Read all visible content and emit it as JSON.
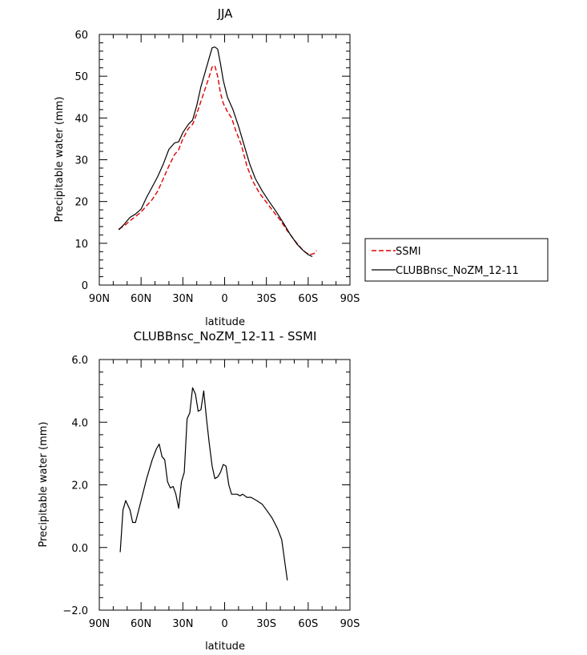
{
  "chart_data": [
    {
      "type": "line",
      "title": "JJA",
      "xlabel": "latitude",
      "ylabel": "Precipitable water (mm)",
      "xlim": [
        90,
        -90
      ],
      "ylim": [
        0,
        60
      ],
      "xticks": [
        {
          "value": 90,
          "label": "90N"
        },
        {
          "value": 60,
          "label": "60N"
        },
        {
          "value": 30,
          "label": "30N"
        },
        {
          "value": 0,
          "label": "0"
        },
        {
          "value": -30,
          "label": "30S"
        },
        {
          "value": -60,
          "label": "60S"
        },
        {
          "value": -90,
          "label": "90S"
        }
      ],
      "yticks": [
        {
          "value": 0,
          "label": "0"
        },
        {
          "value": 10,
          "label": "10"
        },
        {
          "value": 20,
          "label": "20"
        },
        {
          "value": 30,
          "label": "30"
        },
        {
          "value": 40,
          "label": "40"
        },
        {
          "value": 50,
          "label": "50"
        },
        {
          "value": 60,
          "label": "60"
        }
      ],
      "legend_position": "right",
      "series": [
        {
          "name": "SSMI",
          "color": "#e00000",
          "dash": "dashed",
          "points": [
            [
              76,
              13.4
            ],
            [
              72,
              14.2
            ],
            [
              68,
              15.4
            ],
            [
              64,
              16.4
            ],
            [
              60,
              17.5
            ],
            [
              56,
              19.0
            ],
            [
              52,
              20.5
            ],
            [
              48,
              22.5
            ],
            [
              44,
              25.5
            ],
            [
              40,
              28.5
            ],
            [
              36,
              31.2
            ],
            [
              33,
              32.4
            ],
            [
              30,
              35.0
            ],
            [
              26,
              37.5
            ],
            [
              23,
              38.5
            ],
            [
              20,
              41.0
            ],
            [
              17,
              44.0
            ],
            [
              14,
              47.0
            ],
            [
              11,
              50.0
            ],
            [
              9,
              52.2
            ],
            [
              7,
              52.5
            ],
            [
              5,
              50.0
            ],
            [
              3,
              46.0
            ],
            [
              1,
              43.5
            ],
            [
              -2,
              41.5
            ],
            [
              -5,
              40.0
            ],
            [
              -8,
              37.0
            ],
            [
              -12,
              33.5
            ],
            [
              -16,
              28.5
            ],
            [
              -20,
              25.0
            ],
            [
              -25,
              22.0
            ],
            [
              -30,
              19.8
            ],
            [
              -35,
              17.6
            ],
            [
              -40,
              15.5
            ],
            [
              -45,
              13.0
            ],
            [
              -50,
              10.8
            ],
            [
              -55,
              8.8
            ],
            [
              -58,
              7.8
            ],
            [
              -61,
              7.3
            ],
            [
              -64,
              7.5
            ],
            [
              -66,
              8.3
            ]
          ]
        },
        {
          "name": "CLUBBnsc_NoZM_12-11",
          "color": "#000000",
          "dash": "solid",
          "points": [
            [
              76,
              13.2
            ],
            [
              72,
              14.6
            ],
            [
              68,
              16.2
            ],
            [
              64,
              17.0
            ],
            [
              60,
              18.2
            ],
            [
              56,
              21.0
            ],
            [
              52,
              23.5
            ],
            [
              48,
              26.0
            ],
            [
              44,
              29.0
            ],
            [
              40,
              32.5
            ],
            [
              36,
              34.0
            ],
            [
              33,
              34.3
            ],
            [
              30,
              36.5
            ],
            [
              26,
              38.5
            ],
            [
              23,
              39.5
            ],
            [
              20,
              43.0
            ],
            [
              17,
              47.5
            ],
            [
              14,
              51.0
            ],
            [
              11,
              54.5
            ],
            [
              9,
              56.8
            ],
            [
              7,
              57.0
            ],
            [
              5,
              56.5
            ],
            [
              3,
              53.0
            ],
            [
              1,
              49.0
            ],
            [
              -2,
              45.0
            ],
            [
              -6,
              42.0
            ],
            [
              -10,
              38.0
            ],
            [
              -14,
              33.5
            ],
            [
              -18,
              29.0
            ],
            [
              -22,
              25.5
            ],
            [
              -27,
              22.5
            ],
            [
              -32,
              20.0
            ],
            [
              -37,
              17.6
            ],
            [
              -42,
              15.0
            ],
            [
              -47,
              12.2
            ],
            [
              -52,
              9.8
            ],
            [
              -56,
              8.4
            ],
            [
              -60,
              7.3
            ],
            [
              -63,
              6.8
            ]
          ]
        }
      ]
    },
    {
      "type": "line",
      "title": "CLUBBnsc_NoZM_12-11 - SSMI",
      "xlabel": "latitude",
      "ylabel": "Precipitable water (mm)",
      "xlim": [
        90,
        -90
      ],
      "ylim": [
        -2,
        6
      ],
      "xticks": [
        {
          "value": 90,
          "label": "90N"
        },
        {
          "value": 60,
          "label": "60N"
        },
        {
          "value": 30,
          "label": "30N"
        },
        {
          "value": 0,
          "label": "0"
        },
        {
          "value": -30,
          "label": "30S"
        },
        {
          "value": -60,
          "label": "60S"
        },
        {
          "value": -90,
          "label": "90S"
        }
      ],
      "yticks": [
        {
          "value": -2,
          "label": "−2.0"
        },
        {
          "value": 0,
          "label": "0.0"
        },
        {
          "value": 2,
          "label": "2.0"
        },
        {
          "value": 4,
          "label": "4.0"
        },
        {
          "value": 6,
          "label": "6.0"
        }
      ],
      "series": [
        {
          "color": "#000000",
          "dash": "solid",
          "points": [
            [
              75,
              -0.15
            ],
            [
              73,
              1.2
            ],
            [
              71,
              1.5
            ],
            [
              68,
              1.2
            ],
            [
              66,
              0.8
            ],
            [
              64,
              0.8
            ],
            [
              60,
              1.5
            ],
            [
              56,
              2.2
            ],
            [
              52,
              2.8
            ],
            [
              49,
              3.15
            ],
            [
              47,
              3.3
            ],
            [
              45,
              2.9
            ],
            [
              43,
              2.8
            ],
            [
              41,
              2.1
            ],
            [
              39,
              1.9
            ],
            [
              37,
              1.95
            ],
            [
              35,
              1.7
            ],
            [
              33,
              1.25
            ],
            [
              31,
              2.1
            ],
            [
              29,
              2.4
            ],
            [
              27,
              4.1
            ],
            [
              25,
              4.3
            ],
            [
              23,
              5.1
            ],
            [
              21,
              4.9
            ],
            [
              19,
              4.35
            ],
            [
              17,
              4.4
            ],
            [
              15,
              5.0
            ],
            [
              13,
              4.1
            ],
            [
              11,
              3.3
            ],
            [
              9,
              2.6
            ],
            [
              7,
              2.2
            ],
            [
              5,
              2.25
            ],
            [
              3,
              2.4
            ],
            [
              1,
              2.65
            ],
            [
              -1,
              2.6
            ],
            [
              -3,
              2.0
            ],
            [
              -5,
              1.7
            ],
            [
              -9,
              1.7
            ],
            [
              -11,
              1.65
            ],
            [
              -13,
              1.7
            ],
            [
              -16,
              1.6
            ],
            [
              -19,
              1.6
            ],
            [
              -23,
              1.5
            ],
            [
              -27,
              1.38
            ],
            [
              -30,
              1.2
            ],
            [
              -34,
              0.95
            ],
            [
              -38,
              0.6
            ],
            [
              -41,
              0.25
            ],
            [
              -43,
              -0.4
            ],
            [
              -45,
              -1.05
            ]
          ]
        }
      ]
    }
  ]
}
